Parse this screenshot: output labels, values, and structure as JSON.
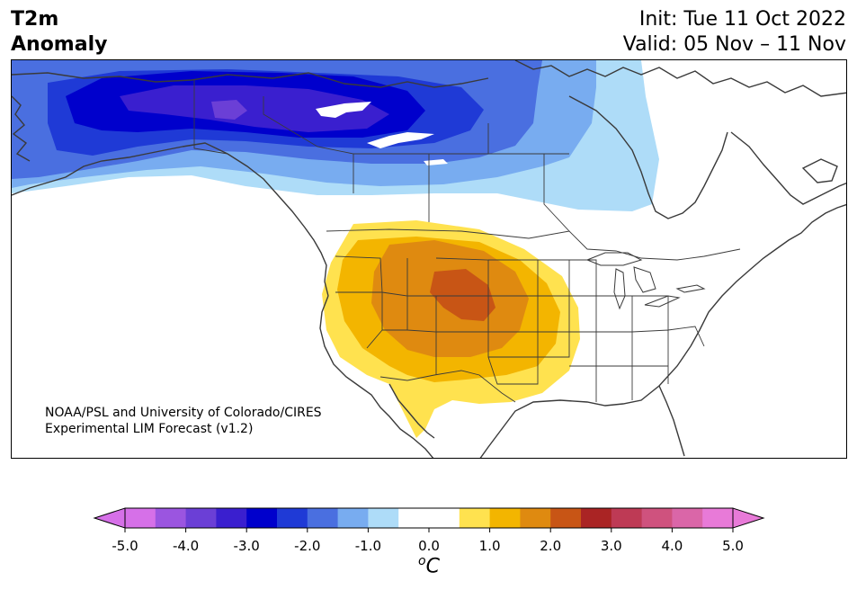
{
  "header": {
    "variable_line1": "T2m",
    "variable_line2": "Anomaly",
    "init_label": "Init: Tue 11 Oct 2022",
    "valid_label": "Valid: 05 Nov – 11 Nov"
  },
  "map": {
    "region": "North America",
    "credit_line1": "NOAA/PSL and University of Colorado/CIRES",
    "credit_line2": "Experimental LIM Forecast (v1.2)",
    "anomalies": {
      "cold_center": "Alaska / northwestern Canada",
      "cold_min_c": -4.0,
      "warm_center": "Colorado / Wyoming / Nebraska",
      "warm_max_c": 2.5
    }
  },
  "colorbar": {
    "unit": "°C",
    "unit_base": "o",
    "unit_letter": "C",
    "min": -5.0,
    "max": 5.0,
    "step": 0.5,
    "tick_labels": [
      "-5.0",
      "-4.0",
      "-3.0",
      "-2.0",
      "-1.0",
      "0.0",
      "1.0",
      "2.0",
      "3.0",
      "4.0",
      "5.0"
    ],
    "colors": [
      "#d670e8",
      "#9b55e0",
      "#6b3fd6",
      "#3a1fcf",
      "#0000cc",
      "#1f3ad6",
      "#4a6fe0",
      "#78acf0",
      "#aedcf8",
      "#ffffff",
      "#ffffff",
      "#ffe24f",
      "#f3b500",
      "#df8a10",
      "#c85515",
      "#aa2424",
      "#be3a55",
      "#cf527e",
      "#da66a8",
      "#e87ad8"
    ]
  }
}
